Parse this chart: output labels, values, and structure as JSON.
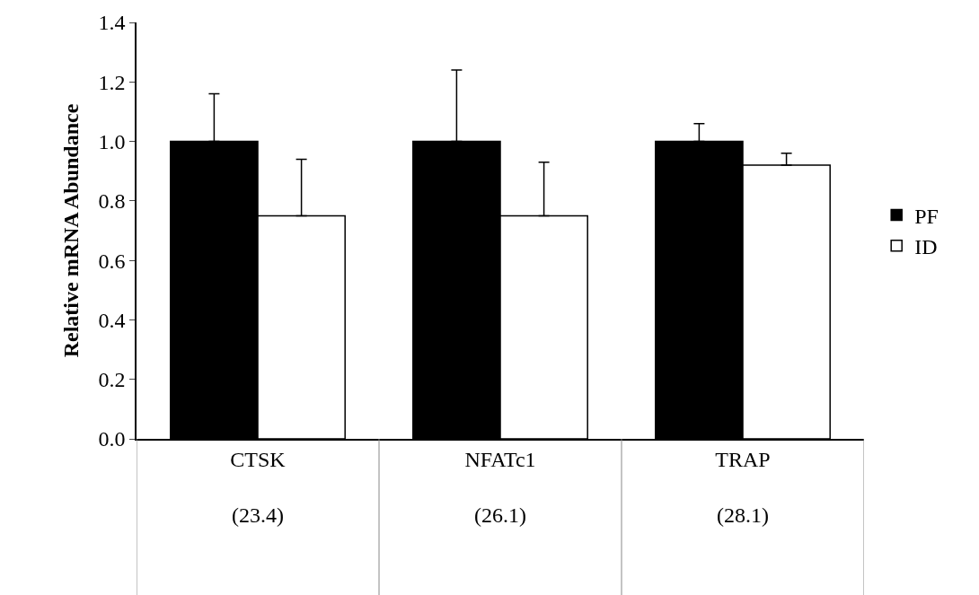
{
  "chart_data": {
    "type": "bar",
    "ylabel": "Relative mRNA Abundance",
    "categories": [
      "CTSK\n\n(23.4)",
      "NFATc1\n\n(26.1)",
      "TRAP\n\n(28.1)"
    ],
    "series": [
      {
        "name": "PF",
        "color": "#000000",
        "values": [
          1.0,
          1.0,
          1.0
        ],
        "errors": [
          [
            1.0,
            1.16
          ],
          [
            1.0,
            1.24
          ],
          [
            1.0,
            1.06
          ]
        ]
      },
      {
        "name": "ID",
        "color": "#ffffff",
        "values": [
          0.75,
          0.75,
          0.92
        ],
        "errors": [
          [
            0.75,
            0.94
          ],
          [
            0.75,
            0.93
          ],
          [
            0.92,
            0.96
          ]
        ]
      }
    ],
    "ylim": [
      0,
      1.4
    ],
    "yticks": [
      {
        "value": 0,
        "label": "0.0"
      },
      {
        "value": 0.2,
        "label": "0.2"
      },
      {
        "value": 0.4,
        "label": "0.4"
      },
      {
        "value": 0.6,
        "label": "0.6"
      },
      {
        "value": 0.8,
        "label": "0.8"
      },
      {
        "value": 1.0,
        "label": "1.0"
      },
      {
        "value": 1.2,
        "label": "1.2"
      },
      {
        "value": 1.4,
        "label": "1.4"
      }
    ],
    "legend": "right"
  }
}
